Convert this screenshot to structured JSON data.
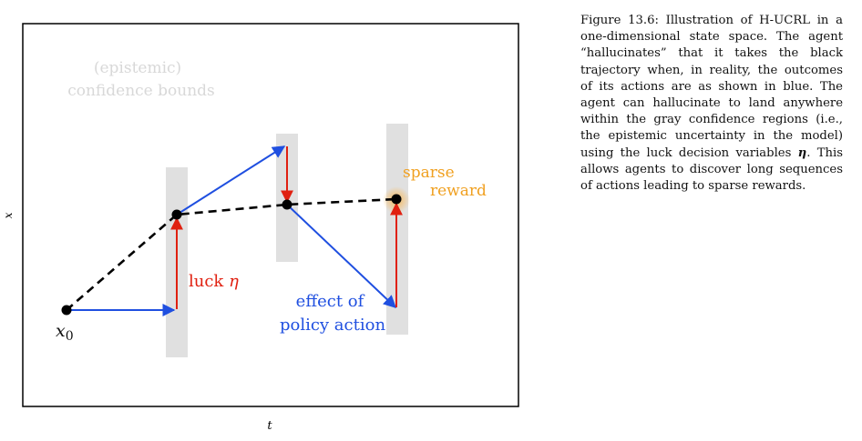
{
  "caption": {
    "label": "Figure 13.6:",
    "text": "Illustration of H-UCRL in a one-dimensional state space. The agent “hallucinates” that it takes the black trajectory when, in reality, the outcomes of its actions are as shown in blue. The agent can hallucinate to land anywhere within the gray confidence regions (i.e., the epistemic uncertainty in the model) using the luck decision variables",
    "symbol": "η",
    "text_end": ". This allows agents to discover long sequences of actions leading to sparse rewards."
  },
  "figure": {
    "xlabel": "t",
    "ylabel": "x",
    "bounds_label_line1": "(epistemic)",
    "bounds_label_line2": "confidence bounds",
    "luck_label": "luck",
    "luck_symbol": "η",
    "policy_label_line1": "effect of",
    "policy_label_line2": "policy action",
    "reward_label_line1": "sparse",
    "reward_label_line2": "reward",
    "start_label": "x",
    "start_subscript": "0"
  },
  "colors": {
    "hallucinated_trajectory": "#000000",
    "policy_action": "#1f4fe0",
    "luck": "#e02010",
    "confidence_region": "#e0e0e0",
    "reward": "#f0a020",
    "faded_label": "#d8d8d8"
  }
}
